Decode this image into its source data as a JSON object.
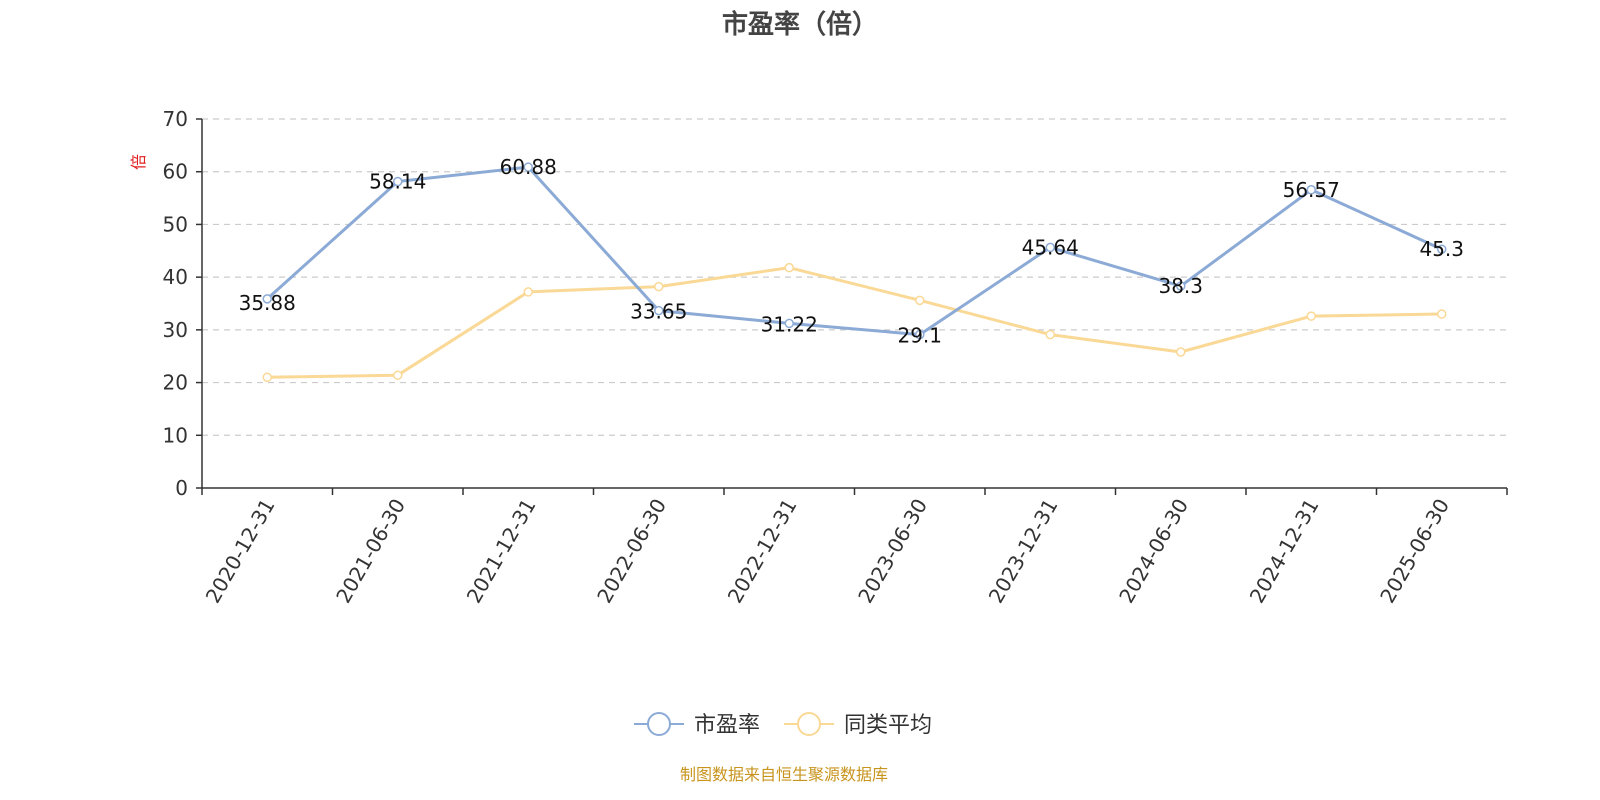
{
  "chart_data": {
    "type": "line",
    "title": "市盈率（倍）",
    "ylabel": "倍",
    "ylim": [
      0,
      70
    ],
    "yticks": [
      0,
      10,
      20,
      30,
      40,
      50,
      60,
      70
    ],
    "grid": true,
    "legend_position": "bottom",
    "categories": [
      "2020-12-31",
      "2021-06-30",
      "2021-12-31",
      "2022-06-30",
      "2022-12-31",
      "2023-06-30",
      "2023-12-31",
      "2024-06-30",
      "2024-12-31",
      "2025-06-30"
    ],
    "series": [
      {
        "name": "市盈率",
        "color": "#8caad6",
        "values": [
          35.88,
          58.14,
          60.88,
          33.65,
          31.22,
          29.1,
          45.64,
          38.3,
          56.57,
          45.3
        ],
        "labels": [
          "35.88",
          "58.14",
          "60.88",
          "33.65",
          "31.22",
          "29.1",
          "45.64",
          "38.3",
          "56.57",
          "45.3"
        ]
      },
      {
        "name": "同类平均",
        "color": "#fad896",
        "values": [
          21.0,
          21.4,
          37.2,
          38.2,
          41.8,
          35.6,
          29.1,
          25.8,
          32.6,
          33.0
        ]
      }
    ],
    "source": "制图数据来自恒生聚源数据库"
  }
}
